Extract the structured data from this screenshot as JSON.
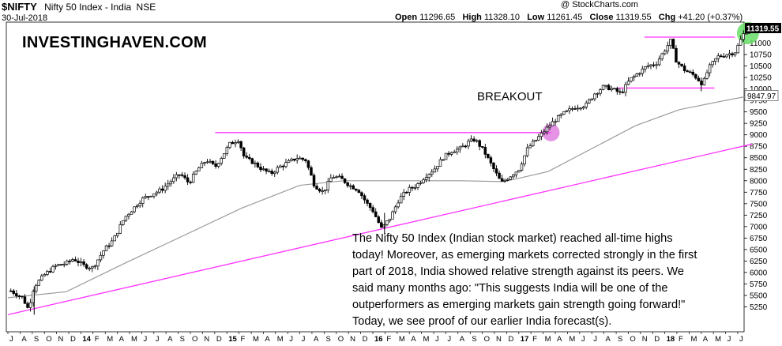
{
  "header": {
    "symbol": "$NIFTY",
    "name": "Nifty 50 Index - India",
    "exchange": "NSE",
    "date": "30-Jul-2018",
    "credit": "@ StockCharts.com",
    "open_label": "Open",
    "open": "11296.65",
    "high_label": "High",
    "high": "11328.10",
    "low_label": "Low",
    "low": "11261.45",
    "close_label": "Close",
    "close": "11319.55",
    "chg_label": "Chg",
    "chg": "+41.20 (+0.37%)"
  },
  "watermark": "INVESTINGHAVEN.COM",
  "annotation": "BREAKOUT",
  "commentary": [
    "The Nifty 50 Index (Indian stock market) reached all-time highs",
    "today! Moreover, as emerging markets corrected strongly in the first",
    "part of 2018, India showed relative strength against its peers. We",
    "said many months ago: \"This suggests India will be one of the",
    "outperformers as emerging markets gain strength going forward!\"",
    "Today, we see proof of our earlier India forecast(s)."
  ],
  "colors": {
    "price": "#000000",
    "moving_average": "#9a9a9a",
    "lines": "#ff33ff",
    "last_price_box": "#000000",
    "ma_box": "#666666",
    "highlight_green": "#66dd66",
    "highlight_purple": "#e080e0"
  },
  "chart_data": {
    "type": "candlestick",
    "period": "weekly",
    "ylim": [
      5000,
      11500
    ],
    "y_ticks": [
      5250,
      5500,
      5750,
      6000,
      6250,
      6500,
      6750,
      7000,
      7250,
      7500,
      7750,
      8000,
      8250,
      8500,
      8750,
      9000,
      9250,
      9500,
      9750,
      10000,
      10250,
      10500,
      10750,
      11000
    ],
    "last_price": 11319.55,
    "last_price_label": "11319.55",
    "moving_average_last": 9847.97,
    "moving_average_label": "9847.97",
    "grid": false,
    "x_labels": [
      {
        "t": 0.0,
        "label": "J"
      },
      {
        "t": 0.083,
        "label": "A"
      },
      {
        "t": 0.167,
        "label": "S"
      },
      {
        "t": 0.25,
        "label": "O"
      },
      {
        "t": 0.333,
        "label": "N"
      },
      {
        "t": 0.417,
        "label": "D"
      },
      {
        "t": 0.5,
        "label": "14",
        "year": true
      },
      {
        "t": 0.583,
        "label": "F"
      },
      {
        "t": 0.667,
        "label": "M"
      },
      {
        "t": 0.75,
        "label": "A"
      },
      {
        "t": 0.833,
        "label": "M"
      },
      {
        "t": 0.917,
        "label": "J"
      },
      {
        "t": 1.0,
        "label": "J"
      },
      {
        "t": 1.083,
        "label": "A"
      },
      {
        "t": 1.167,
        "label": "S"
      },
      {
        "t": 1.25,
        "label": "O"
      },
      {
        "t": 1.333,
        "label": "N"
      },
      {
        "t": 1.417,
        "label": "D"
      },
      {
        "t": 1.5,
        "label": "15",
        "year": true
      },
      {
        "t": 1.583,
        "label": "F"
      },
      {
        "t": 1.667,
        "label": "M"
      },
      {
        "t": 1.75,
        "label": "A"
      },
      {
        "t": 1.833,
        "label": "M"
      },
      {
        "t": 1.917,
        "label": "J"
      },
      {
        "t": 2.0,
        "label": "J"
      },
      {
        "t": 2.083,
        "label": "A"
      },
      {
        "t": 2.167,
        "label": "S"
      },
      {
        "t": 2.25,
        "label": "O"
      },
      {
        "t": 2.333,
        "label": "N"
      },
      {
        "t": 2.417,
        "label": "D"
      },
      {
        "t": 2.5,
        "label": "16",
        "year": true
      },
      {
        "t": 2.583,
        "label": "F"
      },
      {
        "t": 2.667,
        "label": "M"
      },
      {
        "t": 2.75,
        "label": "A"
      },
      {
        "t": 2.833,
        "label": "M"
      },
      {
        "t": 2.917,
        "label": "J"
      },
      {
        "t": 3.0,
        "label": "J"
      },
      {
        "t": 3.083,
        "label": "A"
      },
      {
        "t": 3.167,
        "label": "S"
      },
      {
        "t": 3.25,
        "label": "O"
      },
      {
        "t": 3.333,
        "label": "N"
      },
      {
        "t": 3.417,
        "label": "D"
      },
      {
        "t": 3.5,
        "label": "17",
        "year": true
      },
      {
        "t": 3.583,
        "label": "F"
      },
      {
        "t": 3.667,
        "label": "M"
      },
      {
        "t": 3.75,
        "label": "A"
      },
      {
        "t": 3.833,
        "label": "M"
      },
      {
        "t": 3.917,
        "label": "J"
      },
      {
        "t": 4.0,
        "label": "J"
      },
      {
        "t": 4.083,
        "label": "A"
      },
      {
        "t": 4.167,
        "label": "S"
      },
      {
        "t": 4.25,
        "label": "O"
      },
      {
        "t": 4.333,
        "label": "N"
      },
      {
        "t": 4.417,
        "label": "D"
      },
      {
        "t": 4.5,
        "label": "18",
        "year": true
      },
      {
        "t": 4.583,
        "label": "F"
      },
      {
        "t": 4.667,
        "label": "M"
      },
      {
        "t": 4.75,
        "label": "A"
      },
      {
        "t": 4.833,
        "label": "M"
      },
      {
        "t": 4.917,
        "label": "J"
      },
      {
        "t": 5.0,
        "label": "J"
      }
    ],
    "price_path": [
      [
        0.02,
        5600
      ],
      [
        0.1,
        5450
      ],
      [
        0.14,
        5200
      ],
      [
        0.18,
        5700
      ],
      [
        0.25,
        5950
      ],
      [
        0.33,
        6150
      ],
      [
        0.4,
        6200
      ],
      [
        0.45,
        6300
      ],
      [
        0.52,
        6150
      ],
      [
        0.58,
        6100
      ],
      [
        0.66,
        6500
      ],
      [
        0.72,
        6700
      ],
      [
        0.8,
        7200
      ],
      [
        0.86,
        7400
      ],
      [
        0.92,
        7600
      ],
      [
        0.98,
        7700
      ],
      [
        1.05,
        7800
      ],
      [
        1.12,
        8000
      ],
      [
        1.18,
        8150
      ],
      [
        1.24,
        7950
      ],
      [
        1.3,
        8250
      ],
      [
        1.36,
        8450
      ],
      [
        1.42,
        8300
      ],
      [
        1.48,
        8600
      ],
      [
        1.52,
        8800
      ],
      [
        1.58,
        8900
      ],
      [
        1.62,
        8500
      ],
      [
        1.68,
        8400
      ],
      [
        1.74,
        8250
      ],
      [
        1.8,
        8150
      ],
      [
        1.86,
        8300
      ],
      [
        1.92,
        8400
      ],
      [
        1.98,
        8500
      ],
      [
        2.04,
        8450
      ],
      [
        2.1,
        7900
      ],
      [
        2.16,
        7750
      ],
      [
        2.22,
        8100
      ],
      [
        2.28,
        8050
      ],
      [
        2.34,
        7900
      ],
      [
        2.4,
        7800
      ],
      [
        2.46,
        7500
      ],
      [
        2.5,
        7350
      ],
      [
        2.56,
        6950
      ],
      [
        2.62,
        7200
      ],
      [
        2.68,
        7600
      ],
      [
        2.74,
        7800
      ],
      [
        2.8,
        7900
      ],
      [
        2.86,
        8100
      ],
      [
        2.92,
        8250
      ],
      [
        2.98,
        8500
      ],
      [
        3.04,
        8650
      ],
      [
        3.1,
        8700
      ],
      [
        3.16,
        8850
      ],
      [
        3.2,
        8900
      ],
      [
        3.26,
        8650
      ],
      [
        3.32,
        8300
      ],
      [
        3.38,
        7950
      ],
      [
        3.44,
        8100
      ],
      [
        3.5,
        8250
      ],
      [
        3.56,
        8700
      ],
      [
        3.62,
        8900
      ],
      [
        3.68,
        9100
      ],
      [
        3.74,
        9300
      ],
      [
        3.8,
        9450
      ],
      [
        3.88,
        9600
      ],
      [
        3.96,
        9650
      ],
      [
        4.02,
        9900
      ],
      [
        4.08,
        10050
      ],
      [
        4.14,
        10000
      ],
      [
        4.2,
        9900
      ],
      [
        4.26,
        10200
      ],
      [
        4.32,
        10350
      ],
      [
        4.38,
        10500
      ],
      [
        4.44,
        10550
      ],
      [
        4.5,
        10850
      ],
      [
        4.54,
        11050
      ],
      [
        4.58,
        10600
      ],
      [
        4.64,
        10400
      ],
      [
        4.7,
        10300
      ],
      [
        4.76,
        10100
      ],
      [
        4.8,
        10450
      ],
      [
        4.86,
        10700
      ],
      [
        4.92,
        10750
      ],
      [
        4.98,
        10800
      ],
      [
        5.04,
        11200
      ],
      [
        5.08,
        11320
      ]
    ],
    "moving_average_path": [
      [
        0.0,
        5450
      ],
      [
        0.4,
        5580
      ],
      [
        0.8,
        6200
      ],
      [
        1.2,
        6800
      ],
      [
        1.6,
        7400
      ],
      [
        2.0,
        7900
      ],
      [
        2.3,
        8000
      ],
      [
        2.5,
        8000
      ],
      [
        2.8,
        8000
      ],
      [
        3.1,
        8000
      ],
      [
        3.4,
        7980
      ],
      [
        3.7,
        8200
      ],
      [
        4.0,
        8700
      ],
      [
        4.3,
        9200
      ],
      [
        4.6,
        9550
      ],
      [
        4.9,
        9740
      ],
      [
        5.08,
        9848
      ]
    ],
    "lines": [
      {
        "kind": "support_trendline",
        "from": [
          0.0,
          5080
        ],
        "to": [
          5.1,
          8800
        ]
      },
      {
        "kind": "resistance_2015_high",
        "value": 9050,
        "from_t": 1.42,
        "to_t": 3.72
      },
      {
        "kind": "range_top_2018",
        "value": 11130,
        "from_t": 4.36,
        "to_t": 4.98
      },
      {
        "kind": "range_bottom_2018",
        "value": 10020,
        "from_t": 4.18,
        "to_t": 4.84
      }
    ],
    "highlights": [
      {
        "kind": "breakout_marker",
        "t": 3.72,
        "value": 9050
      },
      {
        "kind": "new_high_marker",
        "t": 5.07,
        "value": 11320
      }
    ]
  }
}
